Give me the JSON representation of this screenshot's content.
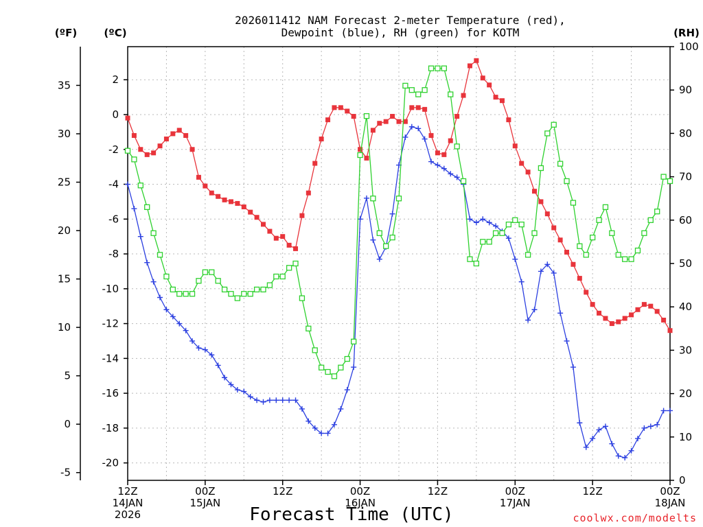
{
  "chart_data": {
    "type": "line",
    "title_lines": [
      "2026011412 NAM Forecast 2-meter Temperature (red),",
      "Dewpoint (blue), RH (green) for KOTM"
    ],
    "xlabel": "Forecast Time (UTC)",
    "credit": "coolwx.com/modelts",
    "units": {
      "fahrenheit": "(ºF)",
      "celsius": "(ºC)",
      "rh": "(RH)"
    },
    "axes": {
      "x_hours": [
        0,
        84
      ],
      "celsius_range": [
        -21.0,
        3.9
      ],
      "fahrenheit_range": [
        -5.8,
        39.0
      ],
      "rh_range": [
        0,
        100
      ]
    },
    "x_ticks": [
      {
        "hour": 0,
        "lines": [
          "12Z",
          "14JAN",
          "2026"
        ]
      },
      {
        "hour": 12,
        "lines": [
          "00Z",
          "15JAN"
        ]
      },
      {
        "hour": 24,
        "lines": [
          "12Z"
        ]
      },
      {
        "hour": 36,
        "lines": [
          "00Z",
          "16JAN"
        ]
      },
      {
        "hour": 48,
        "lines": [
          "12Z"
        ]
      },
      {
        "hour": 60,
        "lines": [
          "00Z",
          "17JAN"
        ]
      },
      {
        "hour": 72,
        "lines": [
          "12Z"
        ]
      },
      {
        "hour": 84,
        "lines": [
          "00Z",
          "18JAN"
        ]
      }
    ],
    "fahrenheit_ticks": [
      -5,
      0,
      5,
      10,
      15,
      20,
      25,
      30,
      35
    ],
    "celsius_ticks": [
      -20,
      -18,
      -16,
      -14,
      -12,
      -10,
      -8,
      -6,
      -4,
      -2,
      0,
      2
    ],
    "rh_ticks": [
      0,
      10,
      20,
      30,
      40,
      50,
      60,
      70,
      80,
      90,
      100
    ],
    "grid_h_celsius": [
      -20,
      -18,
      -16,
      -14,
      -12,
      -10,
      -8,
      -6,
      -4,
      -2,
      0,
      2
    ],
    "grid_v_hours": [
      6,
      12,
      18,
      24,
      30,
      36,
      42,
      48,
      54,
      60,
      66,
      72,
      78
    ],
    "series": [
      {
        "name": "Temperature",
        "unit": "C",
        "color": "#e8343b",
        "marker": "filled-square",
        "x": [
          0,
          1,
          2,
          3,
          4,
          5,
          6,
          7,
          8,
          9,
          10,
          11,
          12,
          13,
          14,
          15,
          16,
          17,
          18,
          19,
          20,
          21,
          22,
          23,
          24,
          25,
          26,
          27,
          28,
          29,
          30,
          31,
          32,
          33,
          34,
          35,
          36,
          37,
          38,
          39,
          40,
          41,
          42,
          43,
          44,
          45,
          46,
          47,
          48,
          49,
          50,
          51,
          52,
          53,
          54,
          55,
          56,
          57,
          58,
          59,
          60,
          61,
          62,
          63,
          64,
          65,
          66,
          67,
          68,
          69,
          70,
          71,
          72,
          73,
          74,
          75,
          76,
          77,
          78,
          79,
          80,
          81,
          82,
          83,
          84
        ],
        "values": [
          -0.2,
          -1.2,
          -2.0,
          -2.3,
          -2.2,
          -1.8,
          -1.4,
          -1.1,
          -0.9,
          -1.2,
          -2.0,
          -3.6,
          -4.1,
          -4.5,
          -4.7,
          -4.9,
          -5.0,
          -5.1,
          -5.3,
          -5.6,
          -5.9,
          -6.3,
          -6.7,
          -7.1,
          -7.0,
          -7.5,
          -7.7,
          -5.8,
          -4.5,
          -2.8,
          -1.4,
          -0.3,
          0.4,
          0.4,
          0.2,
          -0.1,
          -2.0,
          -2.5,
          -0.9,
          -0.5,
          -0.4,
          -0.1,
          -0.4,
          -0.4,
          0.4,
          0.4,
          0.3,
          -1.2,
          -2.2,
          -2.3,
          -1.5,
          -0.1,
          1.1,
          2.8,
          3.1,
          2.1,
          1.7,
          1.0,
          0.8,
          -0.3,
          -1.8,
          -2.8,
          -3.3,
          -4.4,
          -5.0,
          -5.7,
          -6.5,
          -7.2,
          -7.9,
          -8.6,
          -9.4,
          -10.2,
          -10.9,
          -11.4,
          -11.7,
          -12.0,
          -11.9,
          -11.7,
          -11.5,
          -11.2,
          -10.9,
          -11.0,
          -11.3,
          -11.8,
          -12.4
        ]
      },
      {
        "name": "Dewpoint",
        "unit": "C",
        "color": "#2b3fe0",
        "marker": "plus",
        "x": [
          0,
          1,
          2,
          3,
          4,
          5,
          6,
          7,
          8,
          9,
          10,
          11,
          12,
          13,
          14,
          15,
          16,
          17,
          18,
          19,
          20,
          21,
          22,
          23,
          24,
          25,
          26,
          27,
          28,
          29,
          30,
          31,
          32,
          33,
          34,
          35,
          36,
          37,
          38,
          39,
          40,
          41,
          42,
          43,
          44,
          45,
          46,
          47,
          48,
          49,
          50,
          51,
          52,
          53,
          54,
          55,
          56,
          57,
          58,
          59,
          60,
          61,
          62,
          63,
          64,
          65,
          66,
          67,
          68,
          69,
          70,
          71,
          72,
          73,
          74,
          75,
          76,
          77,
          78,
          79,
          80,
          81,
          82,
          83,
          84
        ],
        "values": [
          -4.0,
          -5.4,
          -7.0,
          -8.5,
          -9.6,
          -10.5,
          -11.2,
          -11.6,
          -12.0,
          -12.4,
          -13.0,
          -13.4,
          -13.5,
          -13.8,
          -14.4,
          -15.1,
          -15.5,
          -15.8,
          -15.9,
          -16.2,
          -16.4,
          -16.5,
          -16.4,
          -16.4,
          -16.4,
          -16.4,
          -16.4,
          -16.9,
          -17.6,
          -18.0,
          -18.3,
          -18.3,
          -17.8,
          -16.9,
          -15.8,
          -14.5,
          -6.0,
          -4.8,
          -7.2,
          -8.3,
          -7.6,
          -5.7,
          -2.9,
          -1.3,
          -0.7,
          -0.8,
          -1.4,
          -2.7,
          -2.9,
          -3.1,
          -3.4,
          -3.6,
          -4.0,
          -6.0,
          -6.2,
          -6.0,
          -6.2,
          -6.4,
          -6.7,
          -7.1,
          -8.3,
          -9.6,
          -11.8,
          -11.2,
          -9.0,
          -8.6,
          -9.1,
          -11.4,
          -13.0,
          -14.5,
          -17.7,
          -19.1,
          -18.6,
          -18.1,
          -17.9,
          -18.9,
          -19.6,
          -19.7,
          -19.3,
          -18.6,
          -18.0,
          -17.9,
          -17.8,
          -17.0,
          -17.0
        ]
      },
      {
        "name": "Relative Humidity",
        "unit": "%",
        "color": "#2ed12e",
        "marker": "open-square",
        "x": [
          0,
          1,
          2,
          3,
          4,
          5,
          6,
          7,
          8,
          9,
          10,
          11,
          12,
          13,
          14,
          15,
          16,
          17,
          18,
          19,
          20,
          21,
          22,
          23,
          24,
          25,
          26,
          27,
          28,
          29,
          30,
          31,
          32,
          33,
          34,
          35,
          36,
          37,
          38,
          39,
          40,
          41,
          42,
          43,
          44,
          45,
          46,
          47,
          48,
          49,
          50,
          51,
          52,
          53,
          54,
          55,
          56,
          57,
          58,
          59,
          60,
          61,
          62,
          63,
          64,
          65,
          66,
          67,
          68,
          69,
          70,
          71,
          72,
          73,
          74,
          75,
          76,
          77,
          78,
          79,
          80,
          81,
          82,
          83,
          84
        ],
        "values": [
          76,
          74,
          68,
          63,
          57,
          52,
          47,
          44,
          43,
          43,
          43,
          46,
          48,
          48,
          46,
          44,
          43,
          42,
          43,
          43,
          44,
          44,
          45,
          47,
          47,
          49,
          50,
          42,
          35,
          30,
          26,
          25,
          24,
          26,
          28,
          32,
          75,
          84,
          65,
          57,
          54,
          56,
          65,
          91,
          90,
          89,
          90,
          95,
          95,
          95,
          89,
          77,
          69,
          51,
          50,
          55,
          55,
          57,
          57,
          59,
          60,
          59,
          52,
          57,
          72,
          80,
          82,
          73,
          69,
          64,
          54,
          52,
          56,
          60,
          63,
          57,
          52,
          51,
          51,
          53,
          57,
          60,
          62,
          70,
          69
        ]
      }
    ]
  }
}
